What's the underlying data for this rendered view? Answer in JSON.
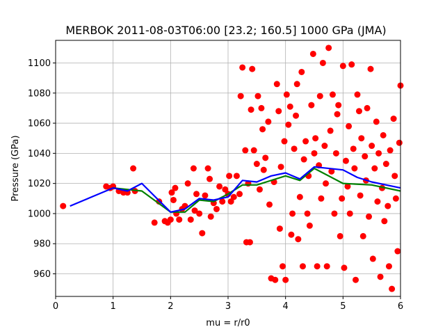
{
  "chart_data": {
    "type": "scatter",
    "title": "MERBOK 2011-08-03T06:00 [23.2; 160.5] 1000 GPa (JMA)",
    "xlabel": "mu = r/r0",
    "ylabel": "Pressure (GPa)",
    "xlim": [
      0,
      6
    ],
    "ylim": [
      945,
      1115
    ],
    "grid": true,
    "x_ticks": [
      "0",
      "1",
      "2",
      "3",
      "4",
      "5",
      "6"
    ],
    "y_ticks": [
      "960",
      "980",
      "1000",
      "1020",
      "1040",
      "1060",
      "1080",
      "1100"
    ],
    "colors": {
      "scatter": "#ff0000",
      "mean_line": "#0000ff",
      "median_line": "#008000"
    },
    "series": [
      {
        "kind": "scatter",
        "points": [
          [
            0.13,
            1005
          ],
          [
            0.88,
            1018
          ],
          [
            0.95,
            1017
          ],
          [
            1.0,
            1018
          ],
          [
            1.1,
            1015
          ],
          [
            1.18,
            1014
          ],
          [
            1.25,
            1014
          ],
          [
            1.35,
            1030
          ],
          [
            1.38,
            1015
          ],
          [
            1.72,
            994
          ],
          [
            1.8,
            1008
          ],
          [
            1.9,
            995
          ],
          [
            1.95,
            994
          ],
          [
            2.0,
            996
          ],
          [
            2.02,
            1014
          ],
          [
            2.05,
            1009
          ],
          [
            2.08,
            1017
          ],
          [
            2.1,
            1000
          ],
          [
            2.15,
            996
          ],
          [
            2.2,
            1003
          ],
          [
            2.25,
            1005
          ],
          [
            2.3,
            1020
          ],
          [
            2.35,
            996
          ],
          [
            2.4,
            1030
          ],
          [
            2.42,
            1002
          ],
          [
            2.45,
            1013
          ],
          [
            2.5,
            1000
          ],
          [
            2.55,
            987
          ],
          [
            2.6,
            1012
          ],
          [
            2.65,
            1030
          ],
          [
            2.68,
            1023
          ],
          [
            2.7,
            998
          ],
          [
            2.75,
            1007
          ],
          [
            2.8,
            1003
          ],
          [
            2.85,
            1018
          ],
          [
            2.9,
            1008
          ],
          [
            2.95,
            1016
          ],
          [
            3.0,
            1013
          ],
          [
            3.02,
            1025
          ],
          [
            3.05,
            1008
          ],
          [
            3.1,
            1011
          ],
          [
            3.15,
            1025
          ],
          [
            3.2,
            1013
          ],
          [
            3.22,
            1078
          ],
          [
            3.25,
            1097
          ],
          [
            3.3,
            1042
          ],
          [
            3.32,
            981
          ],
          [
            3.35,
            1020
          ],
          [
            3.38,
            981
          ],
          [
            3.4,
            1069
          ],
          [
            3.42,
            1096
          ],
          [
            3.45,
            1042
          ],
          [
            3.5,
            1033
          ],
          [
            3.52,
            1078
          ],
          [
            3.55,
            1016
          ],
          [
            3.58,
            1070
          ],
          [
            3.6,
            1056
          ],
          [
            3.62,
            1029
          ],
          [
            3.65,
            1037
          ],
          [
            3.7,
            1061
          ],
          [
            3.72,
            1006
          ],
          [
            3.75,
            957
          ],
          [
            3.8,
            1021
          ],
          [
            3.82,
            956
          ],
          [
            3.85,
            1086
          ],
          [
            3.88,
            1068
          ],
          [
            3.9,
            990
          ],
          [
            3.92,
            1031
          ],
          [
            3.95,
            965
          ],
          [
            3.98,
            1048
          ],
          [
            4.0,
            956
          ],
          [
            4.02,
            1079
          ],
          [
            4.05,
            1059
          ],
          [
            4.08,
            1071
          ],
          [
            4.1,
            986
          ],
          [
            4.12,
            1000
          ],
          [
            4.15,
            1043
          ],
          [
            4.18,
            1065
          ],
          [
            4.2,
            1086
          ],
          [
            4.22,
            983
          ],
          [
            4.25,
            1011
          ],
          [
            4.28,
            1094
          ],
          [
            4.3,
            965
          ],
          [
            4.32,
            1036
          ],
          [
            4.35,
            1048
          ],
          [
            4.38,
            1000
          ],
          [
            4.4,
            1025
          ],
          [
            4.42,
            992
          ],
          [
            4.45,
            1072
          ],
          [
            4.48,
            1106
          ],
          [
            4.5,
            1040
          ],
          [
            4.52,
            1050
          ],
          [
            4.55,
            965
          ],
          [
            4.58,
            1032
          ],
          [
            4.6,
            1078
          ],
          [
            4.62,
            1010
          ],
          [
            4.65,
            1100
          ],
          [
            4.68,
            1045
          ],
          [
            4.7,
            1020
          ],
          [
            4.72,
            965
          ],
          [
            4.75,
            1110
          ],
          [
            4.78,
            1055
          ],
          [
            4.8,
            1028
          ],
          [
            4.82,
            1079
          ],
          [
            4.85,
            1000
          ],
          [
            4.88,
            1040
          ],
          [
            4.9,
            1066
          ],
          [
            4.92,
            1072
          ],
          [
            4.95,
            985
          ],
          [
            4.98,
            1010
          ],
          [
            5.0,
            1098
          ],
          [
            5.02,
            964
          ],
          [
            5.05,
            1035
          ],
          [
            5.08,
            1018
          ],
          [
            5.1,
            1058
          ],
          [
            5.12,
            1000
          ],
          [
            5.15,
            1099
          ],
          [
            5.18,
            1043
          ],
          [
            5.2,
            1030
          ],
          [
            5.22,
            956
          ],
          [
            5.25,
            1079
          ],
          [
            5.28,
            1068
          ],
          [
            5.3,
            1012
          ],
          [
            5.32,
            1050
          ],
          [
            5.35,
            985
          ],
          [
            5.38,
            1038
          ],
          [
            5.4,
            1022
          ],
          [
            5.42,
            1070
          ],
          [
            5.45,
            998
          ],
          [
            5.48,
            1096
          ],
          [
            5.5,
            1045
          ],
          [
            5.52,
            970
          ],
          [
            5.55,
            1030
          ],
          [
            5.58,
            1061
          ],
          [
            5.6,
            1008
          ],
          [
            5.62,
            1040
          ],
          [
            5.65,
            958
          ],
          [
            5.68,
            1017
          ],
          [
            5.7,
            1052
          ],
          [
            5.72,
            995
          ],
          [
            5.75,
            1033
          ],
          [
            5.78,
            1005
          ],
          [
            5.8,
            965
          ],
          [
            5.82,
            1042
          ],
          [
            5.85,
            950
          ],
          [
            5.88,
            1063
          ],
          [
            5.9,
            1025
          ],
          [
            5.92,
            1010
          ],
          [
            5.95,
            975
          ],
          [
            5.98,
            1047
          ],
          [
            6.0,
            1085
          ]
        ]
      },
      {
        "kind": "line",
        "points": [
          [
            1.0,
            1017
          ],
          [
            1.5,
            1015
          ],
          [
            2.0,
            1001
          ],
          [
            2.25,
            1001
          ],
          [
            2.5,
            1009
          ],
          [
            2.75,
            1008
          ],
          [
            3.0,
            1013
          ],
          [
            3.25,
            1019
          ],
          [
            3.5,
            1019
          ],
          [
            4.0,
            1025
          ],
          [
            4.25,
            1022
          ],
          [
            4.5,
            1030
          ],
          [
            5.0,
            1020
          ],
          [
            5.5,
            1019
          ],
          [
            6.0,
            1015
          ]
        ]
      },
      {
        "kind": "line",
        "points": [
          [
            0.25,
            1005
          ],
          [
            1.0,
            1017
          ],
          [
            1.25,
            1015
          ],
          [
            1.5,
            1020
          ],
          [
            2.0,
            1001
          ],
          [
            2.25,
            1003
          ],
          [
            2.5,
            1010
          ],
          [
            2.75,
            1009
          ],
          [
            3.0,
            1011
          ],
          [
            3.25,
            1022
          ],
          [
            3.5,
            1021
          ],
          [
            3.75,
            1025
          ],
          [
            4.0,
            1027
          ],
          [
            4.25,
            1023
          ],
          [
            4.5,
            1031
          ],
          [
            5.0,
            1029
          ],
          [
            5.25,
            1024
          ],
          [
            5.5,
            1021
          ],
          [
            6.0,
            1017
          ]
        ]
      }
    ]
  }
}
